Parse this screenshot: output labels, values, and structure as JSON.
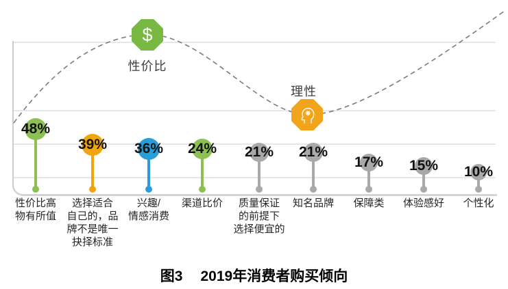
{
  "figure": {
    "caption_label": "图3",
    "caption_title": "2019年消费者购买倾向"
  },
  "annotations": {
    "cost": {
      "label": "性价比",
      "glyph": "$",
      "badge_color": "#79b843",
      "position": "curve peak"
    },
    "rational": {
      "label": "理性",
      "badge_color": "#f2a41c",
      "position": "curve trough"
    }
  },
  "colors": {
    "green": "#8cc152",
    "orange": "#f0a50e",
    "blue": "#2a9dd8",
    "gray": "#a9a9a9",
    "gridline": "#e7e7e7",
    "curve": "#7b7b7b"
  },
  "chart_data": {
    "type": "lollipop",
    "title": "2019年消费者购买倾向",
    "categories": [
      "性价比高\n物有所值",
      "选择适合\n自己的，品\n牌不是唯一\n抉择标准",
      "兴趣/\n情感消费",
      "渠道比价",
      "质量保证\n的前提下\n选择便宜的",
      "知名品牌",
      "保障类",
      "体验感好",
      "个性化"
    ],
    "values": [
      48,
      39,
      36,
      24,
      21,
      21,
      17,
      15,
      10
    ],
    "value_suffix": "%",
    "point_colors": [
      "#8cc152",
      "#f0a50e",
      "#2a9dd8",
      "#8cc152",
      "#a9a9a9",
      "#a9a9a9",
      "#a9a9a9",
      "#a9a9a9",
      "#a9a9a9"
    ],
    "grid": "horizontal light-gray lines, rounded bottom-left axis corner",
    "legend_position": "none",
    "trend_curve": {
      "style": "dashed",
      "shape": "rises from bottom-left to peak (性价比 badge), dips to trough (理性 badge), rises to top-right",
      "peak_label": "性价比",
      "trough_label": "理性"
    }
  }
}
